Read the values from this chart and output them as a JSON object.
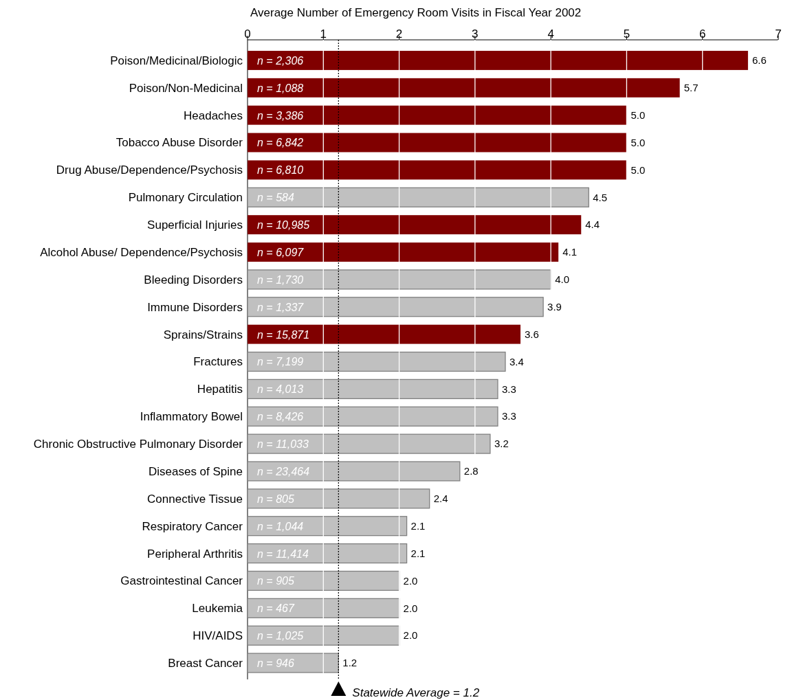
{
  "chart_data": {
    "type": "bar",
    "orientation": "horizontal",
    "xlabel": "Average Number of Emergency Room Visits in Fiscal Year 2002",
    "categories": [
      "Poison/Medicinal/Biologic",
      "Poison/Non-Medicinal",
      "Headaches",
      "Tobacco Abuse Disorder",
      "Drug Abuse/Dependence/Psychosis",
      "Pulmonary Circulation",
      "Superficial Injuries",
      "Alcohol Abuse/ Dependence/Psychosis",
      "Bleeding Disorders",
      "Immune Disorders",
      "Sprains/Strains",
      "Fractures",
      "Hepatitis",
      "Inflammatory Bowel",
      "Chronic Obstructive Pulmonary Disorder",
      "Diseases of Spine",
      "Connective Tissue",
      "Respiratory Cancer",
      "Peripheral Arthritis",
      "Gastrointestinal Cancer",
      "Leukemia",
      "HIV/AIDS",
      "Breast Cancer"
    ],
    "values": [
      6.6,
      5.7,
      5.0,
      5.0,
      5.0,
      4.5,
      4.4,
      4.1,
      4.0,
      3.9,
      3.6,
      3.4,
      3.3,
      3.3,
      3.2,
      2.8,
      2.4,
      2.1,
      2.1,
      2.0,
      2.0,
      2.0,
      1.2
    ],
    "colors": [
      "#800000",
      "#800000",
      "#800000",
      "#800000",
      "#800000",
      "#c0c0c0",
      "#800000",
      "#800000",
      "#c0c0c0",
      "#c0c0c0",
      "#800000",
      "#c0c0c0",
      "#c0c0c0",
      "#c0c0c0",
      "#c0c0c0",
      "#c0c0c0",
      "#c0c0c0",
      "#c0c0c0",
      "#c0c0c0",
      "#c0c0c0",
      "#c0c0c0",
      "#c0c0c0",
      "#c0c0c0"
    ],
    "value_labels": [
      "6.6",
      "5.7",
      "5.0",
      "5.0",
      "5.0",
      "4.5",
      "4.4",
      "4.1",
      "4.0",
      "3.9",
      "3.6",
      "3.4",
      "3.3",
      "3.3",
      "3.2",
      "2.8",
      "2.4",
      "2.1",
      "2.1",
      "2.0",
      "2.0",
      "2.0",
      "1.2"
    ],
    "xlim": [
      0,
      7
    ],
    "xticks": [
      0,
      1,
      2,
      3,
      4,
      5,
      6,
      7
    ],
    "grid": "x",
    "ref_lines": [
      {
        "axis": "x",
        "value": 1.2,
        "label": "Statewide Average = 1.2",
        "line_style": "dotted",
        "color": "#000000"
      }
    ],
    "annotations": [
      {
        "text": "n = 2,306",
        "y": "Poison/Medicinal/Biologic"
      },
      {
        "text": "n = 1,088",
        "y": "Poison/Non-Medicinal"
      },
      {
        "text": "n = 3,386",
        "y": "Headaches"
      },
      {
        "text": "n = 6,842",
        "y": "Tobacco Abuse Disorder"
      },
      {
        "text": "n = 6,810",
        "y": "Drug Abuse/Dependence/Psychosis"
      },
      {
        "text": "n = 584",
        "y": "Pulmonary Circulation"
      },
      {
        "text": "n = 10,985",
        "y": "Superficial Injuries"
      },
      {
        "text": "n = 6,097",
        "y": "Alcohol Abuse/ Dependence/Psychosis"
      },
      {
        "text": "n = 1,730",
        "y": "Bleeding Disorders"
      },
      {
        "text": "n = 1,337",
        "y": "Immune Disorders"
      },
      {
        "text": "n = 15,871",
        "y": "Sprains/Strains"
      },
      {
        "text": "n = 7,199",
        "y": "Fractures"
      },
      {
        "text": "n = 4,013",
        "y": "Hepatitis"
      },
      {
        "text": "n = 8,426",
        "y": "Inflammatory Bowel"
      },
      {
        "text": "n = 11,033",
        "y": "Chronic Obstructive Pulmonary Disorder"
      },
      {
        "text": "n = 23,464",
        "y": "Diseases of Spine"
      },
      {
        "text": "n = 805",
        "y": "Connective Tissue"
      },
      {
        "text": "n = 1,044",
        "y": "Respiratory Cancer"
      },
      {
        "text": "n = 11,414",
        "y": "Peripheral Arthritis"
      },
      {
        "text": "n = 905",
        "y": "Gastrointestinal Cancer"
      },
      {
        "text": "n = 467",
        "y": "Leukemia"
      },
      {
        "text": "n = 1,025",
        "y": "HIV/AIDS"
      },
      {
        "text": "n = 946",
        "y": "Breast Cancer"
      }
    ]
  }
}
